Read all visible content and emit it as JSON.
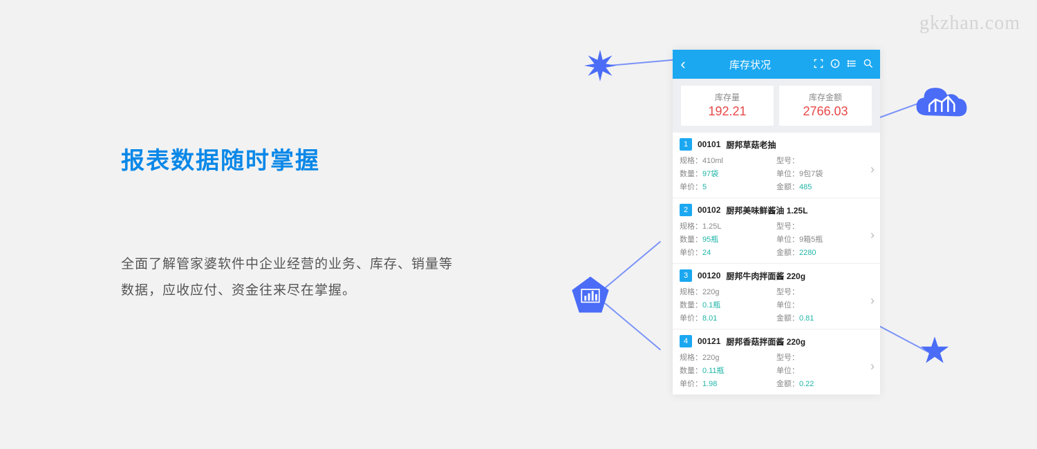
{
  "watermark": "gkzhan.com",
  "headline": "报表数据随时掌握",
  "description": "全面了解管家婆软件中企业经营的业务、库存、销量等数据，应收应付、资金往来尽在掌握。",
  "phone": {
    "title": "库存状况",
    "summary": [
      {
        "label": "库存量",
        "value": "192.21"
      },
      {
        "label": "库存金额",
        "value": "2766.03"
      }
    ],
    "field_labels": {
      "spec": "规格：",
      "model": "型号：",
      "qty": "数量：",
      "unit": "单位：",
      "price": "单价：",
      "amount": "金额："
    },
    "items": [
      {
        "idx": "1",
        "code": "00101",
        "name": "厨邦草菇老抽",
        "spec": "410ml",
        "model": "",
        "qty": "97袋",
        "unit": "9包7袋",
        "price": "5",
        "amount": "485"
      },
      {
        "idx": "2",
        "code": "00102",
        "name": "厨邦美味鲜酱油 1.25L",
        "spec": "1.25L",
        "model": "",
        "qty": "95瓶",
        "unit": "9箱5瓶",
        "price": "24",
        "amount": "2280"
      },
      {
        "idx": "3",
        "code": "00120",
        "name": "厨邦牛肉拌面酱 220g",
        "spec": "220g",
        "model": "",
        "qty": "0.1瓶",
        "unit": "",
        "price": "8.01",
        "amount": "0.81"
      },
      {
        "idx": "4",
        "code": "00121",
        "name": "厨邦香菇拌面酱 220g",
        "spec": "220g",
        "model": "",
        "qty": "0.11瓶",
        "unit": "",
        "price": "1.98",
        "amount": "0.22"
      }
    ]
  },
  "colors": {
    "accent_blue": "#1ba8f1",
    "headline_blue": "#0a88e8",
    "value_red": "#e74848",
    "teal": "#1fb5a8",
    "shape_blue": "#4a6cf7",
    "line_blue": "#7a93f8",
    "bg": "#f2f2f2"
  }
}
